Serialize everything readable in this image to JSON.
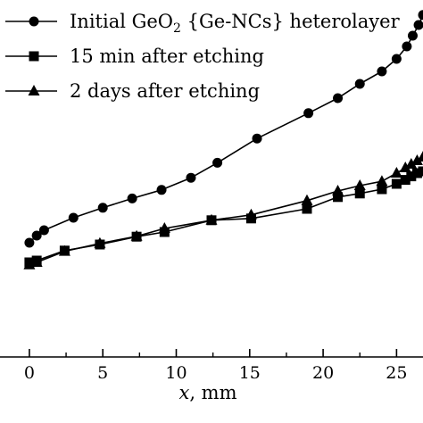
{
  "chart_data": {
    "type": "line",
    "xlabel_var": "x",
    "xlabel_unit": ", mm",
    "x_ticks": [
      0,
      5,
      10,
      15,
      20,
      25
    ],
    "xlim": [
      -2,
      26.8
    ],
    "ylim": [
      0,
      1
    ],
    "legend_position": "top-left",
    "series": [
      {
        "name_pre": "Initial GeO",
        "name_sub": "2",
        "name_post": " {Ge-NCs} heterolayer",
        "marker": "circle",
        "x": [
          0,
          0.5,
          1,
          3,
          5,
          7,
          9,
          11,
          12.8,
          15.5,
          19,
          21,
          22.5,
          24,
          25,
          25.7,
          26.1,
          26.5,
          26.8
        ],
        "y": [
          0.32,
          0.34,
          0.355,
          0.39,
          0.418,
          0.444,
          0.468,
          0.502,
          0.544,
          0.612,
          0.683,
          0.725,
          0.765,
          0.8,
          0.835,
          0.87,
          0.9,
          0.93,
          0.958
        ]
      },
      {
        "name": "15 min after etching",
        "marker": "square",
        "x": [
          0,
          0.5,
          2.4,
          4.8,
          7.3,
          9.2,
          12.4,
          15.1,
          18.9,
          21,
          22.5,
          24,
          25,
          25.6,
          26,
          26.4,
          26.8
        ],
        "y": [
          0.265,
          0.27,
          0.298,
          0.315,
          0.337,
          0.35,
          0.383,
          0.388,
          0.415,
          0.448,
          0.458,
          0.47,
          0.485,
          0.496,
          0.506,
          0.515,
          0.52
        ]
      },
      {
        "name": "2 days after etching",
        "marker": "triangle",
        "x": [
          0,
          0.5,
          2.4,
          4.8,
          7.3,
          9.2,
          12.4,
          15.1,
          18.9,
          21,
          22.5,
          24,
          25,
          25.6,
          26,
          26.4,
          26.8
        ],
        "y": [
          0.258,
          0.265,
          0.296,
          0.318,
          0.338,
          0.36,
          0.383,
          0.398,
          0.438,
          0.465,
          0.48,
          0.492,
          0.515,
          0.53,
          0.54,
          0.55,
          0.56
        ]
      }
    ]
  }
}
